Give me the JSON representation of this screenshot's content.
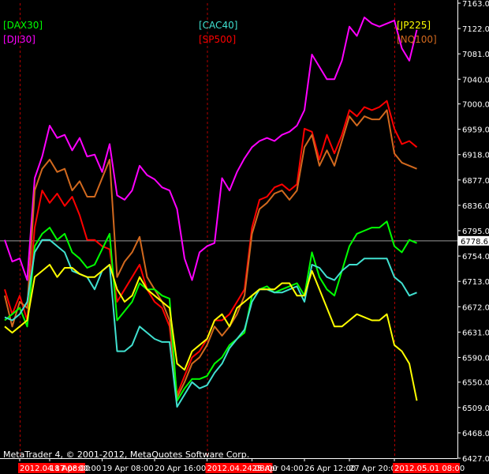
{
  "colors": {
    "background": "#000000",
    "axis": "#ffffff",
    "grid_separator": "#b30000",
    "current_level_line": "#9a9a9a",
    "current_price_box_bg": "#ffffff",
    "date_highlight_bg": "#ff0000"
  },
  "footer": "MetaTrader 4, © 2001-2012, MetaQuotes Software Corp.",
  "current_price_label": "6778.6",
  "chart_data": {
    "type": "line",
    "title": "",
    "xlabel": "",
    "ylabel": "",
    "ylim": [
      6427.0,
      7163.0
    ],
    "current_level": 6778.6,
    "y_ticks": [
      "7163.0",
      "7122.0",
      "7081.0",
      "7040.0",
      "7000.0",
      "6959.0",
      "6918.0",
      "6877.0",
      "6836.0",
      "6795.0",
      "6754.0",
      "6713.0",
      "6672.0",
      "6631.0",
      "6590.0",
      "6550.0",
      "6509.0",
      "6468.0",
      "6427.0"
    ],
    "x_labels": [
      {
        "text": "2012.04.17 08:00",
        "index": 2,
        "highlight": true
      },
      {
        "text": "18 Apr 00:00",
        "index": 6,
        "highlight": false
      },
      {
        "text": "19 Apr 08:00",
        "index": 13,
        "highlight": false
      },
      {
        "text": "20 Apr 16:00",
        "index": 20,
        "highlight": false
      },
      {
        "text": "2012.04.24 08:00",
        "index": 27,
        "highlight": true
      },
      {
        "text": "25 Apr 04:00",
        "index": 33,
        "highlight": false
      },
      {
        "text": "26 Apr 12:00",
        "index": 40,
        "highlight": false
      },
      {
        "text": "27 Apr 20:00",
        "index": 46,
        "highlight": false
      },
      {
        "text": "2012.05.01 08:00",
        "index": 52,
        "highlight": true
      }
    ],
    "separators": [
      2,
      27,
      52
    ],
    "legend": [
      {
        "name": "[DAX30]",
        "color": "#00ff00",
        "pos": "top-left-1"
      },
      {
        "name": "[DJI30]",
        "color": "#ff00ff",
        "pos": "top-left-2"
      },
      {
        "name": "[CAC40]",
        "color": "#40e0d0",
        "pos": "top-center-1"
      },
      {
        "name": "[SP500]",
        "color": "#ff0000",
        "pos": "top-center-2"
      },
      {
        "name": "[JP225]",
        "color": "#ffff00",
        "pos": "top-right-1"
      },
      {
        "name": "[NQ100]",
        "color": "#d2691e",
        "pos": "top-right-2"
      }
    ],
    "series": [
      {
        "name": "[DJI30]",
        "color": "#ff00ff",
        "values": [
          6780,
          6745,
          6750,
          6715,
          6880,
          6915,
          6965,
          6945,
          6950,
          6925,
          6945,
          6915,
          6918,
          6890,
          6935,
          6852,
          6845,
          6860,
          6900,
          6885,
          6878,
          6865,
          6860,
          6830,
          6750,
          6715,
          6760,
          6770,
          6775,
          6880,
          6860,
          6890,
          6912,
          6930,
          6940,
          6945,
          6940,
          6950,
          6955,
          6965,
          6990,
          7080,
          7060,
          7040,
          7040,
          7070,
          7125,
          7110,
          7140,
          7130,
          7125,
          7130,
          7135,
          7090,
          7070,
          7120
        ]
      },
      {
        "name": "[SP500]",
        "color": "#ff0000",
        "values": [
          6700,
          6660,
          6690,
          6650,
          6800,
          6860,
          6840,
          6855,
          6835,
          6850,
          6820,
          6780,
          6780,
          6770,
          6765,
          6680,
          6700,
          6720,
          6740,
          6700,
          6680,
          6670,
          6640,
          6530,
          6560,
          6590,
          6600,
          6620,
          6650,
          6650,
          6660,
          6680,
          6700,
          6800,
          6845,
          6850,
          6865,
          6870,
          6860,
          6870,
          6960,
          6955,
          6910,
          6950,
          6920,
          6950,
          6990,
          6980,
          6995,
          6990,
          6995,
          7005,
          6960,
          6935,
          6940,
          6930
        ]
      },
      {
        "name": "[NQ100]",
        "color": "#d2691e",
        "values": [
          6690,
          6640,
          6680,
          6670,
          6860,
          6895,
          6910,
          6890,
          6895,
          6860,
          6875,
          6850,
          6850,
          6880,
          6910,
          6720,
          6745,
          6760,
          6785,
          6720,
          6700,
          6680,
          6650,
          6525,
          6550,
          6580,
          6590,
          6610,
          6640,
          6625,
          6640,
          6660,
          6690,
          6790,
          6830,
          6840,
          6855,
          6860,
          6845,
          6860,
          6930,
          6950,
          6900,
          6925,
          6900,
          6940,
          6980,
          6965,
          6980,
          6975,
          6975,
          6990,
          6920,
          6905,
          6900,
          6895
        ]
      },
      {
        "name": "[DAX30]",
        "color": "#00ff00",
        "values": [
          6650,
          6660,
          6670,
          6640,
          6770,
          6790,
          6800,
          6780,
          6790,
          6760,
          6750,
          6735,
          6740,
          6765,
          6790,
          6650,
          6665,
          6680,
          6710,
          6700,
          6700,
          6690,
          6685,
          6520,
          6540,
          6555,
          6555,
          6560,
          6580,
          6590,
          6610,
          6620,
          6630,
          6690,
          6700,
          6705,
          6695,
          6700,
          6705,
          6710,
          6690,
          6760,
          6720,
          6700,
          6690,
          6730,
          6770,
          6790,
          6795,
          6800,
          6800,
          6810,
          6770,
          6760,
          6780,
          6775
        ]
      },
      {
        "name": "[CAC40]",
        "color": "#40e0d0",
        "values": [
          6655,
          6650,
          6660,
          6680,
          6760,
          6780,
          6780,
          6770,
          6760,
          6730,
          6725,
          6720,
          6700,
          6730,
          6740,
          6600,
          6600,
          6610,
          6640,
          6630,
          6620,
          6615,
          6615,
          6510,
          6530,
          6550,
          6540,
          6545,
          6565,
          6580,
          6605,
          6620,
          6635,
          6680,
          6700,
          6700,
          6695,
          6695,
          6700,
          6705,
          6680,
          6740,
          6735,
          6720,
          6715,
          6730,
          6740,
          6740,
          6750,
          6750,
          6750,
          6750,
          6720,
          6710,
          6690,
          6695
        ]
      },
      {
        "name": "[JP225]",
        "color": "#ffff00",
        "values": [
          6640,
          6630,
          6640,
          6650,
          6720,
          6730,
          6740,
          6720,
          6735,
          6735,
          6725,
          6720,
          6720,
          6730,
          6740,
          6700,
          6680,
          6690,
          6720,
          6700,
          6690,
          6680,
          6670,
          6580,
          6570,
          6600,
          6610,
          6620,
          6650,
          6660,
          6640,
          6670,
          6680,
          6690,
          6700,
          6700,
          6700,
          6710,
          6710,
          6690,
          6690,
          6730,
          6700,
          6670,
          6640,
          6640,
          6650,
          6660,
          6655,
          6650,
          6650,
          6660,
          6610,
          6600,
          6580,
          6520
        ]
      }
    ]
  }
}
